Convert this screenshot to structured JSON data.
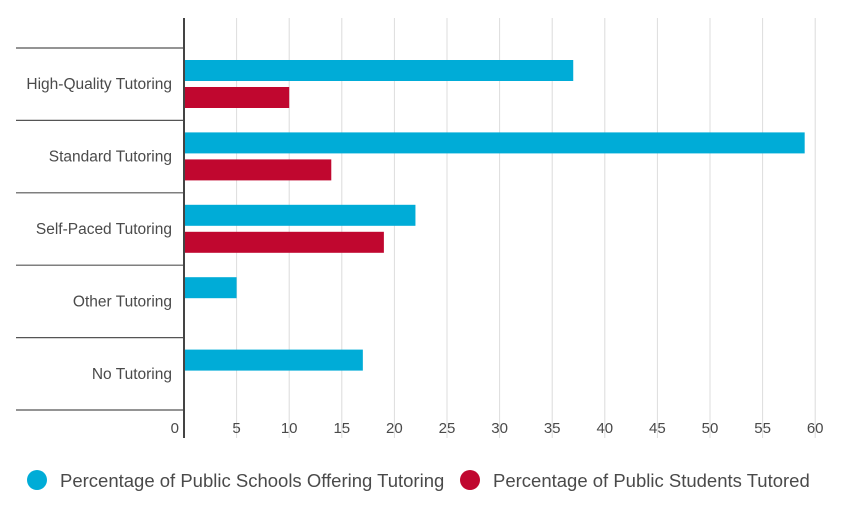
{
  "chart_data": {
    "type": "bar",
    "orientation": "horizontal",
    "categories": [
      "High-Quality Tutoring",
      "Standard Tutoring",
      "Self-Paced Tutoring",
      "Other Tutoring",
      "No Tutoring"
    ],
    "series": [
      {
        "name": "Percentage of Public Schools Offering Tutoring",
        "color": "#00acd7",
        "values": [
          37,
          59,
          22,
          5,
          17
        ]
      },
      {
        "name": "Percentage of Public Students Tutored",
        "color": "#c0072f",
        "values": [
          10,
          14,
          19,
          null,
          null
        ]
      }
    ],
    "xlim": [
      0,
      60
    ],
    "xticks": [
      "0",
      "5",
      "10",
      "15",
      "20",
      "25",
      "30",
      "35",
      "40",
      "45",
      "50",
      "55",
      "60"
    ],
    "grid": true,
    "legend": "bottom"
  }
}
